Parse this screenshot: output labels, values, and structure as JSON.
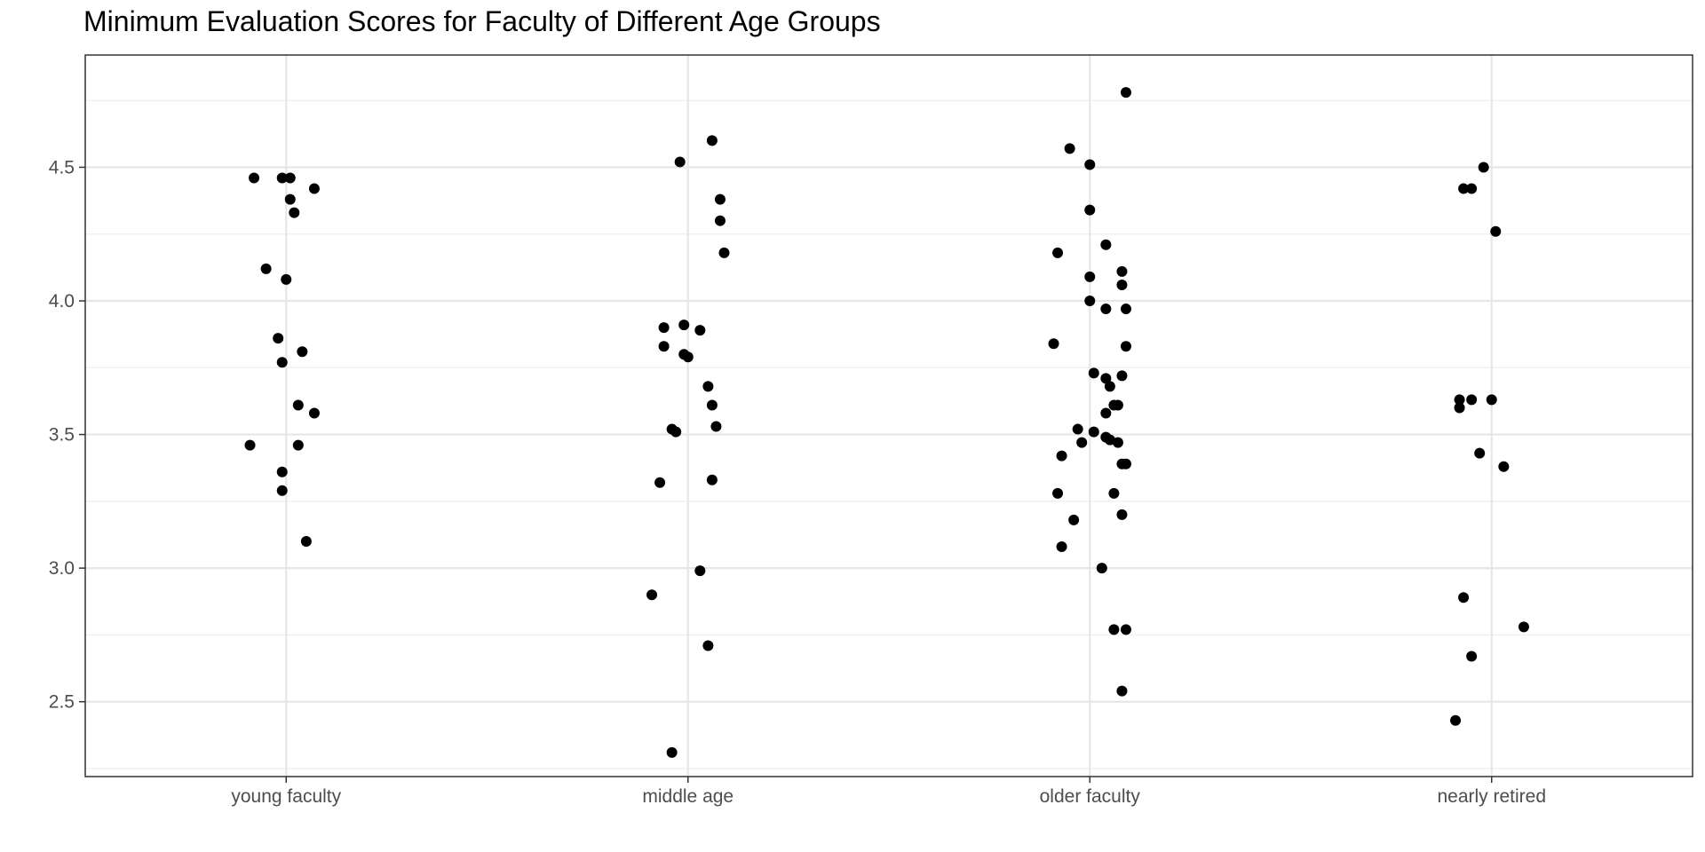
{
  "chart_data": {
    "type": "scatter",
    "title": "Minimum Evaluation Scores for Faculty of Different Age Groups",
    "xlabel": "",
    "ylabel": "",
    "categories": [
      "young faculty",
      "middle age",
      "older faculty",
      "nearly retired"
    ],
    "ylim": [
      2.22,
      4.92
    ],
    "yticks": [
      "2.5",
      "3.0",
      "3.5",
      "4.0",
      "4.5"
    ],
    "grid": true,
    "legend": "none",
    "point_color": "#000000",
    "series": [
      {
        "category": "young faculty",
        "points": [
          [
            -0.08,
            4.46
          ],
          [
            -0.01,
            4.46
          ],
          [
            0.01,
            4.46
          ],
          [
            0.07,
            4.42
          ],
          [
            0.01,
            4.38
          ],
          [
            0.02,
            4.33
          ],
          [
            -0.05,
            4.12
          ],
          [
            0.0,
            4.08
          ],
          [
            -0.02,
            3.86
          ],
          [
            0.04,
            3.81
          ],
          [
            -0.01,
            3.77
          ],
          [
            0.03,
            3.61
          ],
          [
            0.07,
            3.58
          ],
          [
            -0.09,
            3.46
          ],
          [
            0.03,
            3.46
          ],
          [
            -0.01,
            3.36
          ],
          [
            -0.01,
            3.29
          ],
          [
            0.05,
            3.1
          ]
        ]
      },
      {
        "category": "middle age",
        "points": [
          [
            0.06,
            4.6
          ],
          [
            -0.02,
            4.52
          ],
          [
            0.08,
            4.38
          ],
          [
            0.08,
            4.3
          ],
          [
            0.09,
            4.18
          ],
          [
            -0.06,
            3.9
          ],
          [
            -0.01,
            3.91
          ],
          [
            0.03,
            3.89
          ],
          [
            -0.06,
            3.83
          ],
          [
            -0.01,
            3.8
          ],
          [
            0.0,
            3.79
          ],
          [
            0.05,
            3.68
          ],
          [
            0.06,
            3.61
          ],
          [
            0.07,
            3.53
          ],
          [
            -0.04,
            3.52
          ],
          [
            -0.03,
            3.51
          ],
          [
            -0.07,
            3.32
          ],
          [
            0.06,
            3.33
          ],
          [
            0.03,
            2.99
          ],
          [
            -0.09,
            2.9
          ],
          [
            0.05,
            2.71
          ],
          [
            -0.04,
            2.31
          ]
        ]
      },
      {
        "category": "older faculty",
        "points": [
          [
            0.09,
            4.78
          ],
          [
            -0.05,
            4.57
          ],
          [
            0.0,
            4.51
          ],
          [
            0.0,
            4.34
          ],
          [
            0.04,
            4.21
          ],
          [
            -0.08,
            4.18
          ],
          [
            0.08,
            4.11
          ],
          [
            0.0,
            4.09
          ],
          [
            0.08,
            4.06
          ],
          [
            0.0,
            4.0
          ],
          [
            0.04,
            3.97
          ],
          [
            0.09,
            3.97
          ],
          [
            -0.09,
            3.84
          ],
          [
            0.09,
            3.83
          ],
          [
            0.01,
            3.73
          ],
          [
            0.04,
            3.71
          ],
          [
            0.08,
            3.72
          ],
          [
            0.05,
            3.68
          ],
          [
            0.06,
            3.61
          ],
          [
            0.07,
            3.61
          ],
          [
            0.04,
            3.58
          ],
          [
            -0.03,
            3.52
          ],
          [
            0.01,
            3.51
          ],
          [
            0.04,
            3.49
          ],
          [
            0.05,
            3.48
          ],
          [
            -0.02,
            3.47
          ],
          [
            0.07,
            3.47
          ],
          [
            -0.07,
            3.42
          ],
          [
            0.08,
            3.39
          ],
          [
            0.09,
            3.39
          ],
          [
            0.06,
            3.28
          ],
          [
            -0.08,
            3.28
          ],
          [
            -0.04,
            3.18
          ],
          [
            0.08,
            3.2
          ],
          [
            -0.07,
            3.08
          ],
          [
            0.03,
            3.0
          ],
          [
            0.06,
            2.77
          ],
          [
            0.09,
            2.77
          ],
          [
            0.08,
            2.54
          ]
        ]
      },
      {
        "category": "nearly retired",
        "points": [
          [
            -0.02,
            4.5
          ],
          [
            -0.07,
            4.42
          ],
          [
            -0.05,
            4.42
          ],
          [
            0.01,
            4.26
          ],
          [
            -0.08,
            3.63
          ],
          [
            -0.05,
            3.63
          ],
          [
            0.0,
            3.63
          ],
          [
            -0.08,
            3.6
          ],
          [
            -0.03,
            3.43
          ],
          [
            0.03,
            3.38
          ],
          [
            -0.07,
            2.89
          ],
          [
            0.08,
            2.78
          ],
          [
            -0.05,
            2.67
          ],
          [
            -0.09,
            2.43
          ]
        ]
      }
    ]
  }
}
